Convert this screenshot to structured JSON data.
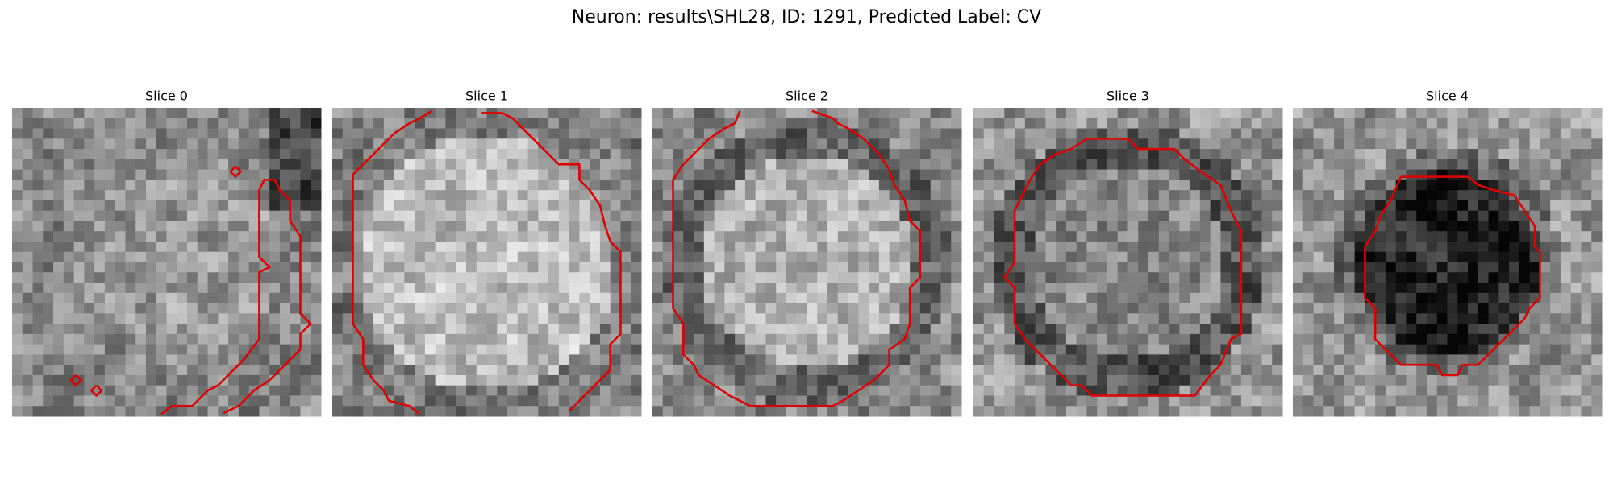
{
  "title": "Neuron: results\\SHL28, ID: 1291, Predicted Label: CV",
  "panels": [
    {
      "title": "Slice 0"
    },
    {
      "title": "Slice 1"
    },
    {
      "title": "Slice 2"
    },
    {
      "title": "Slice 3"
    },
    {
      "title": "Slice 4"
    }
  ]
}
